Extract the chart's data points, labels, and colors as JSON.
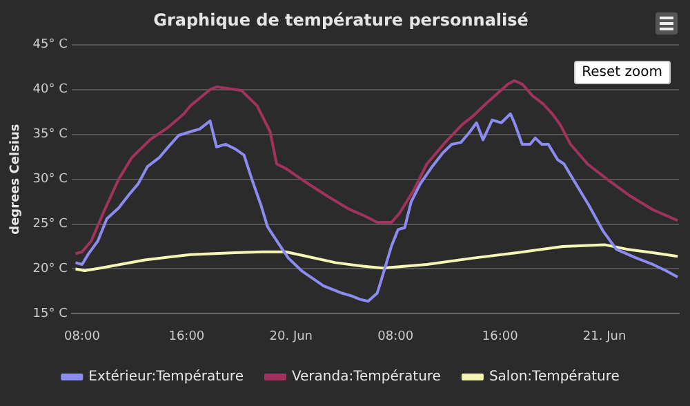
{
  "chart_data": {
    "type": "line",
    "title": "Graphique de température personnalisé",
    "ylabel": "degrees Celsius",
    "annotations": [
      "Reset zoom"
    ],
    "xlim": [
      "--06-19T07:12",
      "--06-21T05:42"
    ],
    "xticks": [
      {
        "value": "--06-19T08:00",
        "label": "08:00"
      },
      {
        "value": "--06-19T16:00",
        "label": "16:00"
      },
      {
        "value": "--06-20T00:00",
        "label": "20. Jun"
      },
      {
        "value": "--06-20T08:00",
        "label": "08:00"
      },
      {
        "value": "--06-20T16:00",
        "label": "16:00"
      },
      {
        "value": "--06-21T00:00",
        "label": "21. Jun"
      }
    ],
    "ylim": [
      15,
      45
    ],
    "yticks": [
      {
        "value": 15,
        "label": "15° C"
      },
      {
        "value": 20,
        "label": "20° C"
      },
      {
        "value": 25,
        "label": "25° C"
      },
      {
        "value": 30,
        "label": "30° C"
      },
      {
        "value": 35,
        "label": "35° C"
      },
      {
        "value": 40,
        "label": "40° C"
      },
      {
        "value": 45,
        "label": "45° C"
      }
    ],
    "grid": "y",
    "legend": "bottom",
    "marker": "none",
    "line_style": "solid",
    "series": [
      {
        "name": "Extérieur:Température",
        "color": "#8c8cf0",
        "x": [
          "--06-19T07:30",
          "--06-19T08:00",
          "--06-19T08:30",
          "--06-19T09:12",
          "--06-19T09:54",
          "--06-19T10:48",
          "--06-19T11:36",
          "--06-19T12:18",
          "--06-19T13:00",
          "--06-19T13:54",
          "--06-19T14:36",
          "--06-19T15:24",
          "--06-19T16:18",
          "--06-19T17:00",
          "--06-19T17:48",
          "--06-19T18:18",
          "--06-19T19:00",
          "--06-19T19:42",
          "--06-19T20:24",
          "--06-19T21:00",
          "--06-19T21:42",
          "--06-19T22:12",
          "--06-19T23:06",
          "--06-19T23:48",
          "--06-20T00:48",
          "--06-20T02:30",
          "--06-20T03:54",
          "--06-20T04:36",
          "--06-20T05:18",
          "--06-20T05:54",
          "--06-20T06:36",
          "--06-20T07:00",
          "--06-20T07:42",
          "--06-20T08:12",
          "--06-20T08:42",
          "--06-20T09:12",
          "--06-20T09:54",
          "--06-20T10:48",
          "--06-20T11:36",
          "--06-20T12:18",
          "--06-20T13:00",
          "--06-20T13:42",
          "--06-20T14:12",
          "--06-20T14:42",
          "--06-20T15:24",
          "--06-20T16:06",
          "--06-20T16:48",
          "--06-20T17:06",
          "--06-20T17:42",
          "--06-20T18:18",
          "--06-20T18:42",
          "--06-20T19:12",
          "--06-20T19:42",
          "--06-20T20:24",
          "--06-20T20:54",
          "--06-20T21:48",
          "--06-20T22:48",
          "--06-20T23:54",
          "--06-21T00:54",
          "--06-21T02:18",
          "--06-21T03:42",
          "--06-21T04:42",
          "--06-21T05:36"
        ],
        "values": [
          20.7,
          20.5,
          21.7,
          23.1,
          25.6,
          26.8,
          28.3,
          29.5,
          31.4,
          32.4,
          33.6,
          34.9,
          35.3,
          35.6,
          36.5,
          33.6,
          33.9,
          33.4,
          32.7,
          30.0,
          27.1,
          24.7,
          22.7,
          21.2,
          19.8,
          18.1,
          17.3,
          17.0,
          16.6,
          16.4,
          17.3,
          19.2,
          22.6,
          24.4,
          24.6,
          27.5,
          29.5,
          31.4,
          32.9,
          33.9,
          34.1,
          35.3,
          36.3,
          34.4,
          36.6,
          36.3,
          37.3,
          36.3,
          33.9,
          33.9,
          34.6,
          33.9,
          33.9,
          32.2,
          31.7,
          29.5,
          27.1,
          24.2,
          22.2,
          21.3,
          20.5,
          19.8,
          19.1
        ]
      },
      {
        "name": "Veranda:Température",
        "color": "#a0335e",
        "x": [
          "--06-19T07:30",
          "--06-19T08:00",
          "--06-19T08:42",
          "--06-19T09:42",
          "--06-19T10:48",
          "--06-19T11:48",
          "--06-19T13:12",
          "--06-19T14:36",
          "--06-19T15:48",
          "--06-19T16:18",
          "--06-19T17:48",
          "--06-19T18:18",
          "--06-19T20:12",
          "--06-19T21:24",
          "--06-19T22:24",
          "--06-19T22:54",
          "--06-19T23:36",
          "--06-20T01:00",
          "--06-20T02:48",
          "--06-20T04:24",
          "--06-20T05:30",
          "--06-20T06:36",
          "--06-20T07:42",
          "--06-20T08:18",
          "--06-20T09:24",
          "--06-20T10:24",
          "--06-20T11:48",
          "--06-20T13:06",
          "--06-20T13:54",
          "--06-20T14:54",
          "--06-20T16:36",
          "--06-20T17:06",
          "--06-20T17:42",
          "--06-20T18:30",
          "--06-20T19:18",
          "--06-20T20:00",
          "--06-20T20:36",
          "--06-20T21:24",
          "--06-20T22:42",
          "--06-21T00:12",
          "--06-21T02:00",
          "--06-21T03:42",
          "--06-21T05:36"
        ],
        "values": [
          21.7,
          21.9,
          23.1,
          26.5,
          30.0,
          32.4,
          34.4,
          35.8,
          37.3,
          38.2,
          40.0,
          40.3,
          39.9,
          38.2,
          35.3,
          31.7,
          31.2,
          29.8,
          28.1,
          26.7,
          26.0,
          25.2,
          25.2,
          26.2,
          28.8,
          31.7,
          34.1,
          36.1,
          37.0,
          38.4,
          40.6,
          41.0,
          40.6,
          39.3,
          38.4,
          37.3,
          36.1,
          33.9,
          31.7,
          30.0,
          28.1,
          26.6,
          25.4
        ]
      },
      {
        "name": "Salon:Température",
        "color": "#f5f5b5",
        "x": [
          "--06-19T07:30",
          "--06-19T08:12",
          "--06-19T09:24",
          "--06-19T12:48",
          "--06-19T16:18",
          "--06-19T19:42",
          "--06-19T21:48",
          "--06-19T23:36",
          "--06-20T00:54",
          "--06-20T03:24",
          "--06-20T05:30",
          "--06-20T07:00",
          "--06-20T10:24",
          "--06-20T13:54",
          "--06-20T17:18",
          "--06-20T20:48",
          "--06-21T00:00",
          "--06-21T01:42",
          "--06-21T03:42",
          "--06-21T05:36"
        ],
        "values": [
          20.0,
          19.8,
          20.1,
          21.0,
          21.6,
          21.8,
          21.9,
          21.9,
          21.5,
          20.7,
          20.3,
          20.1,
          20.5,
          21.2,
          21.8,
          22.5,
          22.7,
          22.2,
          21.8,
          21.4
        ]
      }
    ]
  }
}
